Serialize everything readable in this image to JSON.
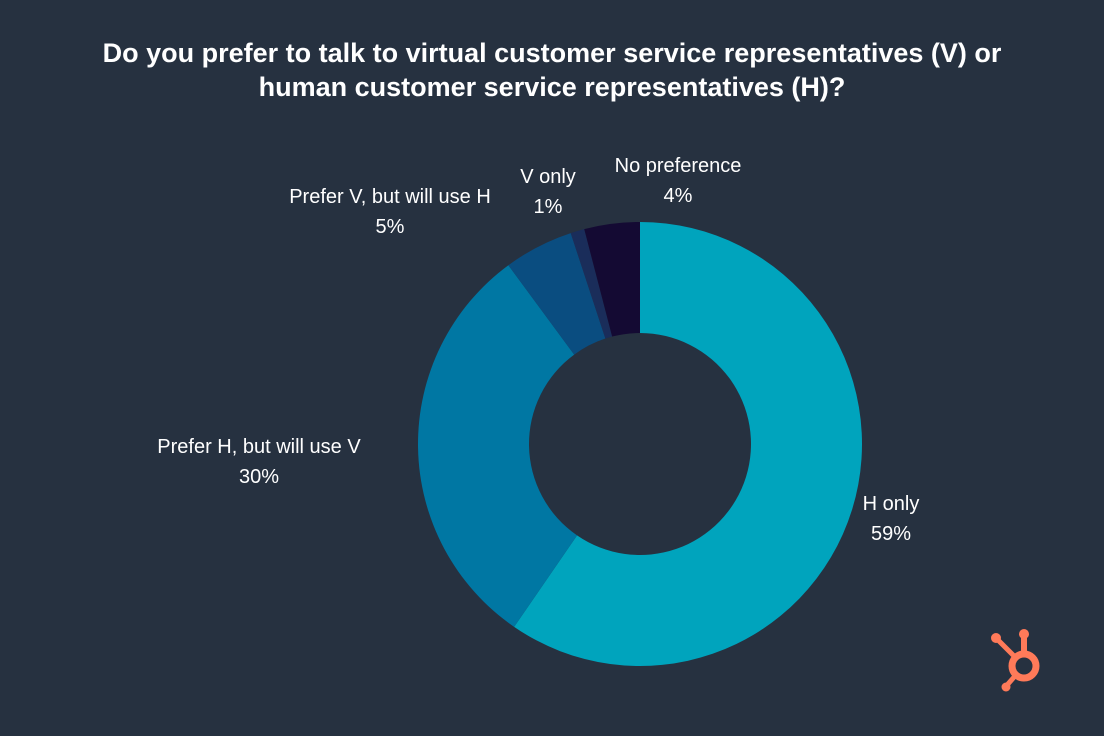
{
  "theme": {
    "background": "#263140",
    "text": "#ffffff",
    "brand_accent": "#ff7a59"
  },
  "chart_data": {
    "type": "pie",
    "donut": true,
    "title_line1": "Do you prefer to talk to virtual customer service representatives (V) or",
    "title_line2": "human customer service representatives (H)?",
    "slices": [
      {
        "key": "h-only",
        "label": "H only",
        "value": 59,
        "display": "59%",
        "color": "#00a4bd"
      },
      {
        "key": "prefer-h",
        "label": "Prefer H, but will use V",
        "value": 30,
        "display": "30%",
        "color": "#0077a3"
      },
      {
        "key": "prefer-v",
        "label": "Prefer V, but will use H",
        "value": 5,
        "display": "5%",
        "color": "#0a4d80"
      },
      {
        "key": "v-only",
        "label": "V only",
        "value": 1,
        "display": "1%",
        "color": "#1a2d5a"
      },
      {
        "key": "no-pref",
        "label": "No preference",
        "value": 4,
        "display": "4%",
        "color": "#140a33"
      }
    ]
  },
  "logo": {
    "icon": "hubspot-sprocket-icon"
  }
}
